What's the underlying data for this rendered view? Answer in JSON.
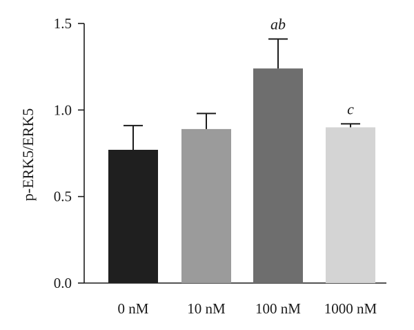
{
  "chart_data": {
    "type": "bar",
    "ylabel": "p-ERK5/ERK5",
    "xlabel": "",
    "ylim": [
      0,
      1.5
    ],
    "yticks": [
      "0.0",
      "0.5",
      "1.0",
      "1.5"
    ],
    "categories": [
      "0 nM",
      "10 nM",
      "100 nM",
      "1000 nM"
    ],
    "values": [
      0.77,
      0.89,
      1.24,
      0.9
    ],
    "errors": [
      0.14,
      0.09,
      0.17,
      0.02
    ],
    "annotations": [
      "",
      "",
      "ab",
      "c"
    ],
    "colors": [
      "#1f1f1f",
      "#9b9b9b",
      "#6e6e6e",
      "#d4d4d4"
    ],
    "grid": false,
    "legend": "none"
  }
}
